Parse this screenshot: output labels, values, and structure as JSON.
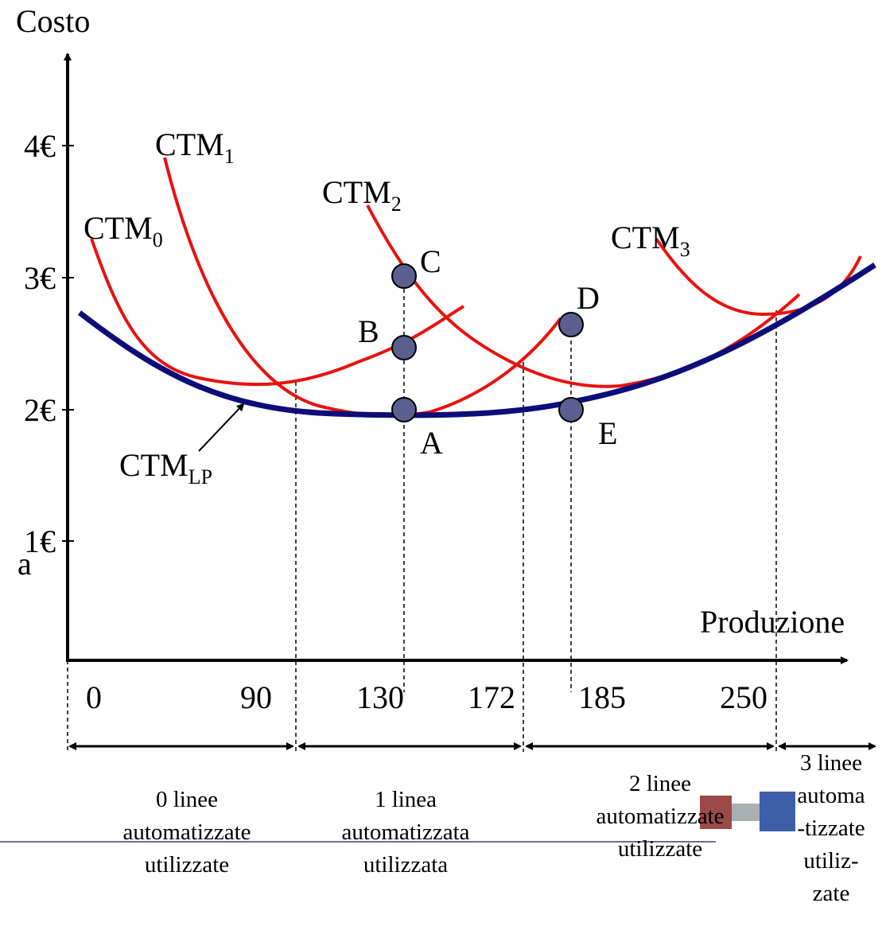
{
  "axes": {
    "y_label": "Costo",
    "x_label": "Produzione",
    "y_ticks": [
      "4€",
      "3€",
      "2€",
      "1€"
    ],
    "x_ticks": [
      "0",
      "90",
      "130",
      "172",
      "185",
      "250"
    ]
  },
  "stray_text": "a",
  "curves": [
    {
      "name": "CTM",
      "sub": "0"
    },
    {
      "name": "CTM",
      "sub": "1"
    },
    {
      "name": "CTM",
      "sub": "2"
    },
    {
      "name": "CTM",
      "sub": "3"
    },
    {
      "name": "CTM",
      "sub": "LP"
    }
  ],
  "points": [
    "A",
    "B",
    "C",
    "D",
    "E"
  ],
  "regions": [
    [
      "0 linee",
      "automatizzate",
      "utilizzate"
    ],
    [
      "1 linea",
      "automatizzata",
      "utilizzata"
    ],
    [
      "2 linee",
      "automatizzate",
      "utilizzate"
    ],
    [
      "3 linee",
      "automa",
      "-tizzate",
      "utiliz-",
      "zate"
    ]
  ]
}
